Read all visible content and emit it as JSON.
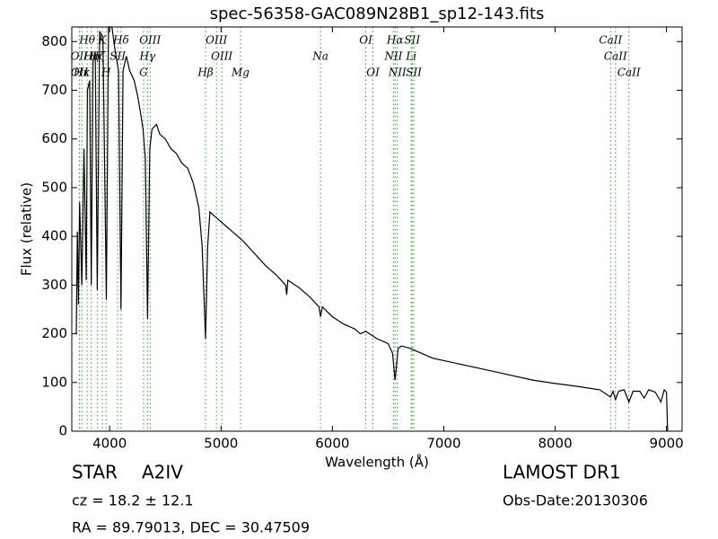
{
  "chart_data": {
    "type": "line",
    "title": "spec-56358-GAC089N28B1_sp12-143.fits",
    "x_label": "Wavelength (Å)",
    "y_label": "Flux (relative)",
    "xlim": [
      3660,
      9140
    ],
    "ylim": [
      0,
      830
    ],
    "xticks": [
      4000,
      5000,
      6000,
      7000,
      8000,
      9000
    ],
    "yticks": [
      0,
      100,
      200,
      300,
      400,
      500,
      600,
      700,
      800
    ],
    "color": "#000000",
    "line_color": "#2ca02c",
    "x": [
      3700,
      3710,
      3720,
      3730,
      3750,
      3770,
      3790,
      3800,
      3820,
      3835,
      3850,
      3870,
      3889,
      3910,
      3940,
      3970,
      3990,
      4020,
      4050,
      4080,
      4102,
      4120,
      4150,
      4180,
      4220,
      4250,
      4280,
      4300,
      4320,
      4340,
      4360,
      4380,
      4420,
      4450,
      4500,
      4550,
      4600,
      4650,
      4700,
      4750,
      4800,
      4830,
      4861,
      4880,
      4900,
      4950,
      5000,
      5100,
      5200,
      5300,
      5400,
      5500,
      5580,
      5590,
      5600,
      5700,
      5800,
      5880,
      5893,
      5910,
      6000,
      6100,
      6200,
      6250,
      6300,
      6400,
      6500,
      6540,
      6563,
      6590,
      6620,
      6700,
      6800,
      6900,
      7000,
      7200,
      7400,
      7600,
      7800,
      8000,
      8200,
      8400,
      8498,
      8520,
      8542,
      8570,
      8620,
      8662,
      8700,
      8760,
      8800,
      8840,
      8900,
      8950,
      8980,
      9000,
      9010
    ],
    "values": [
      200,
      410,
      260,
      470,
      300,
      580,
      310,
      700,
      720,
      300,
      760,
      780,
      290,
      820,
      810,
      270,
      830,
      830,
      780,
      740,
      250,
      740,
      770,
      740,
      720,
      690,
      650,
      620,
      560,
      230,
      580,
      620,
      630,
      610,
      600,
      580,
      570,
      550,
      540,
      510,
      460,
      380,
      190,
      380,
      450,
      440,
      430,
      410,
      390,
      365,
      340,
      320,
      300,
      280,
      310,
      295,
      275,
      255,
      235,
      255,
      235,
      220,
      210,
      200,
      205,
      190,
      180,
      160,
      105,
      170,
      175,
      170,
      160,
      150,
      145,
      135,
      125,
      115,
      105,
      98,
      92,
      85,
      70,
      82,
      65,
      82,
      85,
      60,
      82,
      82,
      68,
      85,
      80,
      60,
      85,
      80,
      0
    ],
    "lines": [
      [
        {
          "label": "Hθ",
          "x": 3798
        },
        {
          "label": "K",
          "x": 3934
        },
        {
          "label": "Hδ",
          "x": 4102
        },
        {
          "label": "OIII",
          "x": 4363
        },
        {
          "label": "OIII",
          "x": 4959
        },
        {
          "label": "OI",
          "x": 6300
        },
        {
          "label": "Hα",
          "x": 6563
        },
        {
          "label": "SII",
          "x": 6716
        },
        {
          "label": "CaII",
          "x": 8498
        }
      ],
      [
        {
          "label": "OII",
          "x": 3727
        },
        {
          "label": "Hη",
          "x": 3835
        },
        {
          "label": "Hζ",
          "x": 3889
        },
        {
          "label": "SII",
          "x": 4072
        },
        {
          "label": "Hγ",
          "x": 4340
        },
        {
          "label": "OIII",
          "x": 5007
        },
        {
          "label": "Na",
          "x": 5893
        },
        {
          "label": "NII",
          "x": 6548
        },
        {
          "label": "Li",
          "x": 6708
        },
        {
          "label": "CaII",
          "x": 8542
        }
      ],
      [
        {
          "label": "OII",
          "x": 3729
        },
        {
          "label": "Hκ",
          "x": 3750
        },
        {
          "label": "H",
          "x": 3968
        },
        {
          "label": "G",
          "x": 4304
        },
        {
          "label": "Hβ",
          "x": 4861
        },
        {
          "label": "Mg",
          "x": 5175
        },
        {
          "label": "OI",
          "x": 6364
        },
        {
          "label": "NII",
          "x": 6583
        },
        {
          "label": "SII",
          "x": 6731
        },
        {
          "label": "CaII",
          "x": 8662
        }
      ]
    ],
    "object_class": "STAR",
    "subclass": "A2IV",
    "survey": "LAMOST DR1",
    "redshift_text": "cz = 18.2  ± 12.1",
    "obs_date": "Obs-Date:20130306",
    "coords": "RA = 89.79013, DEC = 30.47509"
  }
}
